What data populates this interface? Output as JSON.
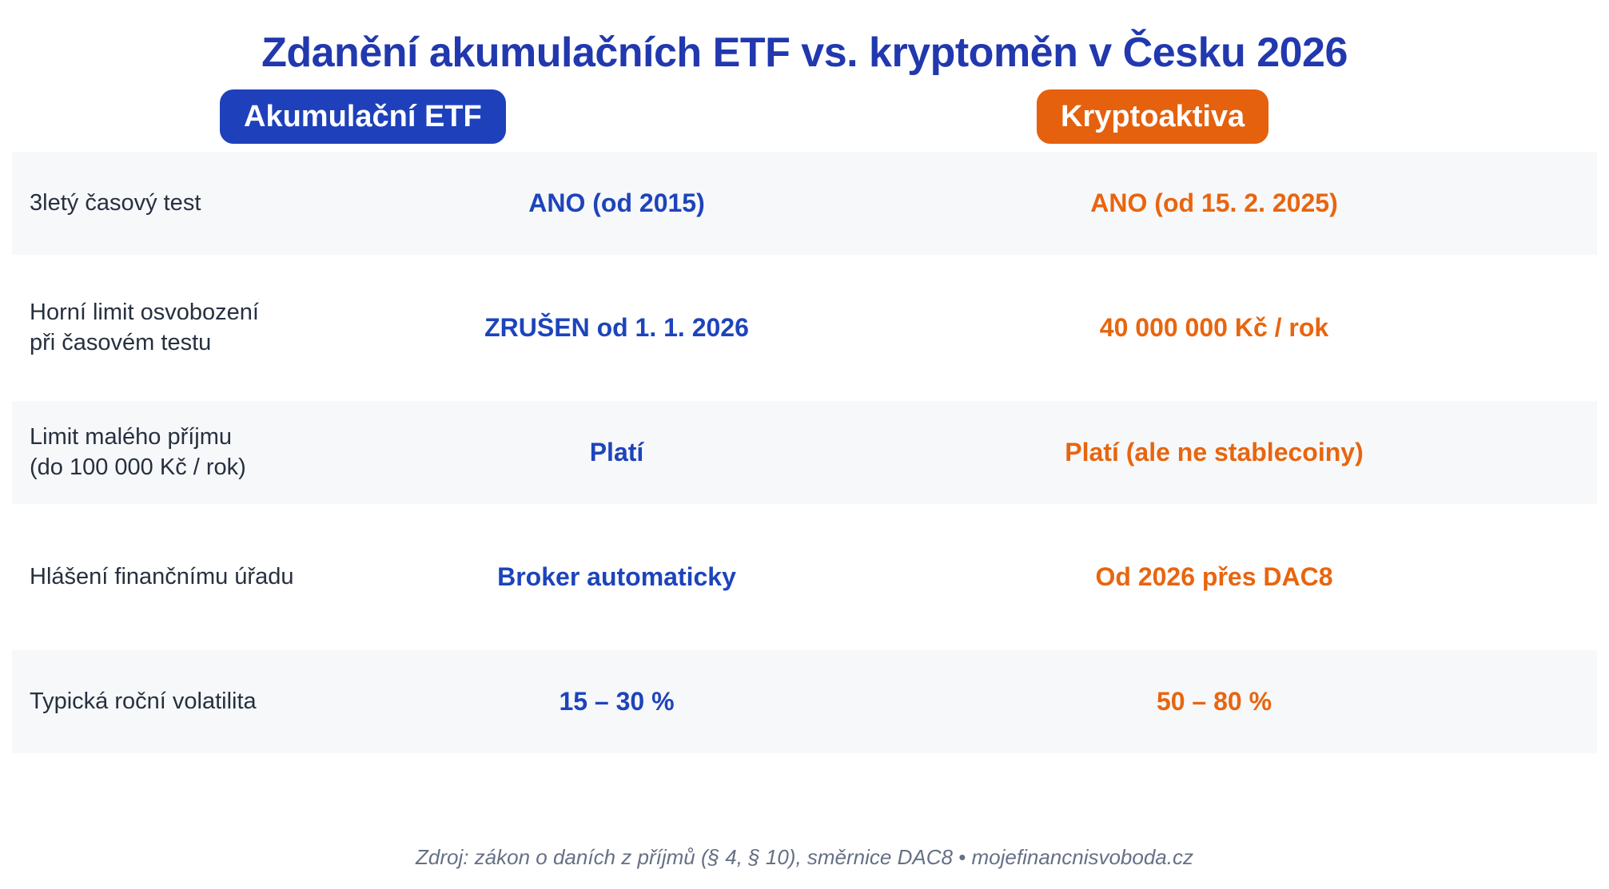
{
  "header": {
    "title": "Zdanění akumulačních ETF vs. kryptoměn v Česku 2026",
    "etf_badge": "Akumulační ETF",
    "crypto_badge": "Kryptoaktiva"
  },
  "table": {
    "rows": [
      {
        "label": "3letý časový test",
        "etf": "ANO (od 2015)",
        "crypto": "ANO (od 15. 2. 2025)"
      },
      {
        "label": "Horní limit osvobození\npři časovém testu",
        "etf": "ZRUŠEN od 1. 1. 2026",
        "crypto": "40 000 000 Kč / rok"
      },
      {
        "label": "Limit malého příjmu\n(do 100 000 Kč / rok)",
        "etf": "Platí",
        "crypto": "Platí (ale ne stablecoiny)"
      },
      {
        "label": "Hlášení finančnímu úřadu",
        "etf": "Broker automaticky",
        "crypto": "Od 2026 přes DAC8"
      },
      {
        "label": "Typická roční volatilita",
        "etf": "15 – 30 %",
        "crypto": "50 – 80 %"
      }
    ]
  },
  "footer": {
    "source": "Zdroj: zákon o daních z příjmů (§ 4, § 10), směrnice DAC8 • mojefinancnisvoboda.cz"
  },
  "colors": {
    "title_blue": "#2138ae",
    "badge_blue": "#1e41bb",
    "value_blue": "#1d44bb",
    "badge_orange": "#e5610e",
    "value_orange": "#e8650f",
    "stripe_background": "#f7f8fa",
    "label_text": "#27303f",
    "footer_text": "#667085"
  },
  "chart_data": {
    "type": "table",
    "title": "Zdanění akumulačních ETF vs. kryptoměn v Česku 2026",
    "columns": [
      "",
      "Akumulační ETF",
      "Kryptoaktiva"
    ],
    "rows": [
      [
        "3letý časový test",
        "ANO (od 2015)",
        "ANO (od 15. 2. 2025)"
      ],
      [
        "Horní limit osvobození při časovém testu",
        "ZRUŠEN od 1. 1. 2026",
        "40 000 000 Kč / rok"
      ],
      [
        "Limit malého příjmu (do 100 000 Kč / rok)",
        "Platí",
        "Platí (ale ne stablecoiny)"
      ],
      [
        "Hlášení finančnímu úřadu",
        "Broker automaticky",
        "Od 2026 přes DAC8"
      ],
      [
        "Typická roční volatilita",
        "15 – 30 %",
        "50 – 80 %"
      ]
    ],
    "series_colors": {
      "Akumulační ETF": "#1e41bb",
      "Kryptoaktiva": "#e5610e"
    },
    "source": "Zdroj: zákon o daních z příjmů (§ 4, § 10), směrnice DAC8 • mojefinancnisvoboda.cz",
    "layout_hints": {
      "striped_rows": [
        0,
        2,
        4
      ],
      "label_column": "left-aligned",
      "value_columns": "center-aligned"
    }
  }
}
